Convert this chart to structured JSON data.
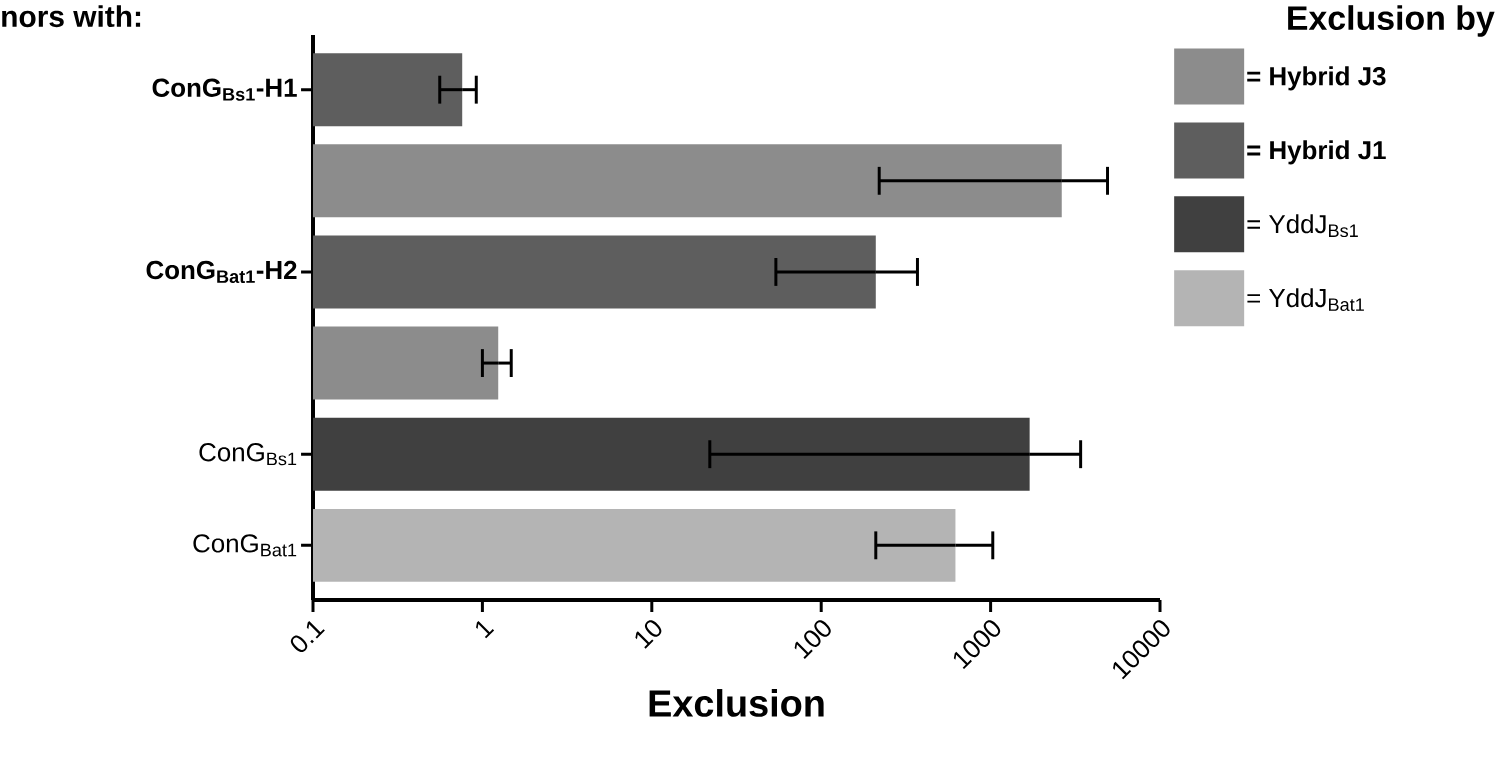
{
  "chart_data": {
    "type": "bar",
    "orientation": "horizontal",
    "title": "nors with:",
    "xlabel": "Exclusion",
    "legend_title": "Exclusion by",
    "categories": [
      "**ConG$_{Bs1}$-H1**",
      null,
      "**ConG$_{Bat1}$-H2**",
      null,
      "ConG$_{Bs1}$",
      "ConG$_{Bat1}$"
    ],
    "series": [
      {
        "name": "**= Hybrid J3**",
        "color": "#8c8c8c",
        "values": [
          null,
          2630,
          null,
          1.24,
          null,
          null
        ],
        "errors": [
          null,
          [
            220,
            4900
          ],
          null,
          [
            1.0,
            1.48
          ],
          null,
          null
        ]
      },
      {
        "name": "**= Hybrid J1**",
        "color": "#5e5e5e",
        "values": [
          0.76,
          null,
          210,
          null,
          null,
          null
        ],
        "errors": [
          [
            0.56,
            0.92
          ],
          null,
          [
            54,
            370
          ],
          null,
          null,
          null
        ]
      },
      {
        "name": "= YddJ$_{Bs1}$",
        "color": "#404040",
        "values": [
          null,
          null,
          null,
          null,
          1700,
          null
        ],
        "errors": [
          null,
          null,
          null,
          null,
          [
            22,
            3400
          ],
          null
        ]
      },
      {
        "name": "= YddJ$_{Bat1}$",
        "color": "#b4b4b4",
        "values": [
          null,
          null,
          null,
          null,
          null,
          620
        ],
        "errors": [
          null,
          null,
          null,
          null,
          null,
          [
            210,
            1030
          ]
        ]
      }
    ],
    "log": "x",
    "xlim": [
      0.1,
      10000
    ],
    "xticks": [
      0.1,
      1,
      10,
      100,
      1000,
      10000
    ],
    "legend": "right",
    "grid": false
  }
}
